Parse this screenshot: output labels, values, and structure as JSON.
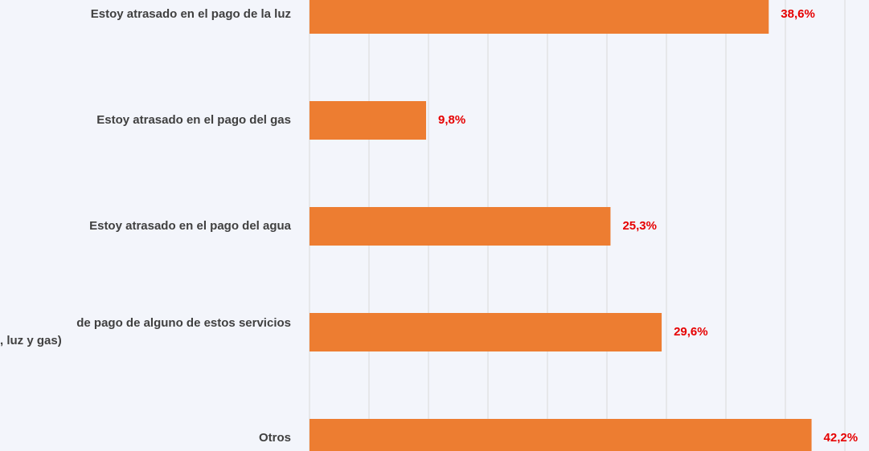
{
  "chart_data": {
    "type": "barh",
    "categories": [
      "Estoy atrasado en el pago de la luz",
      "Estoy atrasado en el pago del gas",
      "Estoy atrasado en el pago del agua",
      [
        "de pago de alguno de estos servicios",
        ", luz y gas)"
      ],
      "Otros"
    ],
    "values": [
      38.6,
      9.8,
      25.3,
      29.6,
      42.2
    ],
    "value_labels": [
      "38,6%",
      "9,8%",
      "25,3%",
      "29,6%",
      "42,2%"
    ],
    "color": "#ed7d31",
    "label_color": "#e60000",
    "xlim": [
      0,
      45
    ],
    "xticks": [
      0,
      5,
      10,
      15,
      20,
      25,
      30,
      35,
      40,
      45
    ],
    "grid": true
  }
}
